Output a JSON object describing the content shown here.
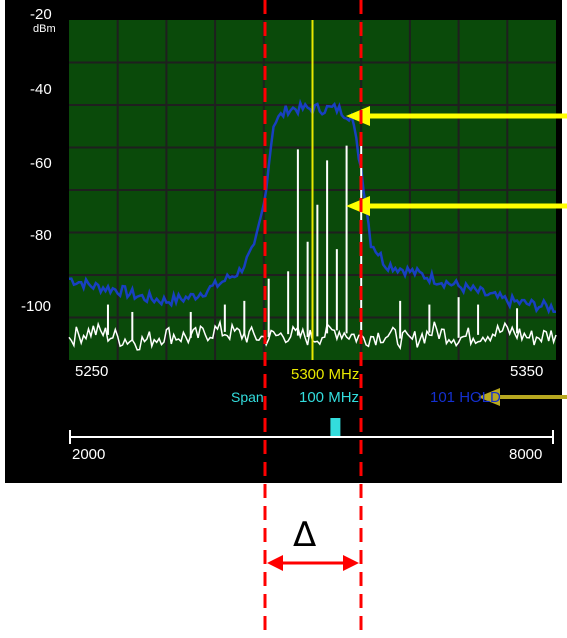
{
  "colors": {
    "background": "#000000",
    "plot_background": "#0a4a0a",
    "grid": "#1f1f1f",
    "trace_average": "#1840c0",
    "trace_live": "#ffffff",
    "marker": "#e8e800",
    "span_text": "#33dddd",
    "annotation_arrow": "#ffff00",
    "delta_lines": "#ff0000"
  },
  "y_axis": {
    "unit": "dBm",
    "ticks": [
      "-20",
      "-40",
      "-60",
      "-80",
      "-100"
    ]
  },
  "x_axis": {
    "start_label": "5250",
    "end_label": "5350"
  },
  "center_readout": "5300 MHz",
  "span": {
    "label": "Span",
    "value": "100 MHz"
  },
  "mode_readout": "101 HOLD",
  "range_bar": {
    "min_label": "2000",
    "max_label": "8000",
    "indicator_fraction": 0.45
  },
  "annotation": {
    "delta_symbol": "Δ"
  },
  "chart_data": {
    "type": "line",
    "title": "",
    "xlabel": "",
    "ylabel": "dBm",
    "xlim": [
      5250,
      5350
    ],
    "ylim": [
      -112,
      -20
    ],
    "marker_x": 5300,
    "series": [
      {
        "x": [
          5250,
          5255,
          5260,
          5265,
          5270,
          5275,
          5280,
          5285,
          5288,
          5290,
          5292,
          5295,
          5300,
          5305,
          5308,
          5310,
          5312,
          5315,
          5320,
          5325,
          5330,
          5335,
          5340,
          5345,
          5350
        ],
        "values": [
          -90,
          -92,
          -93,
          -95,
          -96,
          -95,
          -92,
          -88,
          -82,
          -70,
          -48,
          -44,
          -44,
          -44,
          -46,
          -60,
          -80,
          -86,
          -88,
          -90,
          -92,
          -94,
          -96,
          -97,
          -98
        ]
      },
      {
        "x": [
          5250,
          5255,
          5260,
          5265,
          5270,
          5275,
          5280,
          5285,
          5290,
          5295,
          5300,
          5305,
          5310,
          5315,
          5320,
          5325,
          5330,
          5335,
          5340,
          5345,
          5350
        ],
        "values": [
          -106,
          -104,
          -106,
          -107,
          -105,
          -106,
          -104,
          -105,
          -106,
          -105,
          -106,
          -104,
          -106,
          -105,
          -107,
          -104,
          -106,
          -105,
          -104,
          -106,
          -105
        ]
      },
      {
        "type": "impulses",
        "x": [
          5258,
          5263,
          5275,
          5282,
          5286,
          5291,
          5295,
          5297,
          5299,
          5301,
          5303,
          5305,
          5307,
          5310,
          5318,
          5324,
          5330,
          5334,
          5342
        ],
        "values": [
          -97,
          -99,
          -99,
          -97,
          -96,
          -90,
          -88,
          -55,
          -80,
          -70,
          -58,
          -82,
          -54,
          -52,
          -96,
          -97,
          -95,
          -97,
          -98
        ]
      }
    ]
  }
}
